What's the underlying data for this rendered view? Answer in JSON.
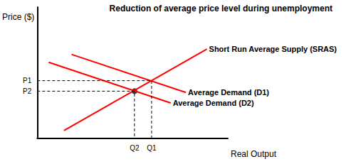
{
  "chart_data": {
    "type": "line",
    "title": "Reduction of average price level during unemployment",
    "xlabel": "Real Output",
    "ylabel": "Price ($)",
    "xlim": [
      0,
      100
    ],
    "ylim": [
      0,
      100
    ],
    "xticks": [
      {
        "value": 51,
        "label": "Q2"
      },
      {
        "value": 60,
        "label": "Q1"
      }
    ],
    "yticks": [
      {
        "value": 36,
        "label": "P2"
      },
      {
        "value": 44,
        "label": "P1"
      }
    ],
    "grid": false,
    "series": [
      {
        "name": "Short Run Average Supply (SRAS)",
        "color": "#ff0000",
        "x": [
          14,
          89
        ],
        "values": [
          6,
          68
        ]
      },
      {
        "name": "Average Demand (D1)",
        "color": "#ff0000",
        "x": [
          18,
          78
        ],
        "values": [
          64,
          35
        ]
      },
      {
        "name": "Average Demand (D2)",
        "color": "#ff0000",
        "x": [
          6,
          70
        ],
        "values": [
          58,
          27
        ]
      }
    ]
  }
}
